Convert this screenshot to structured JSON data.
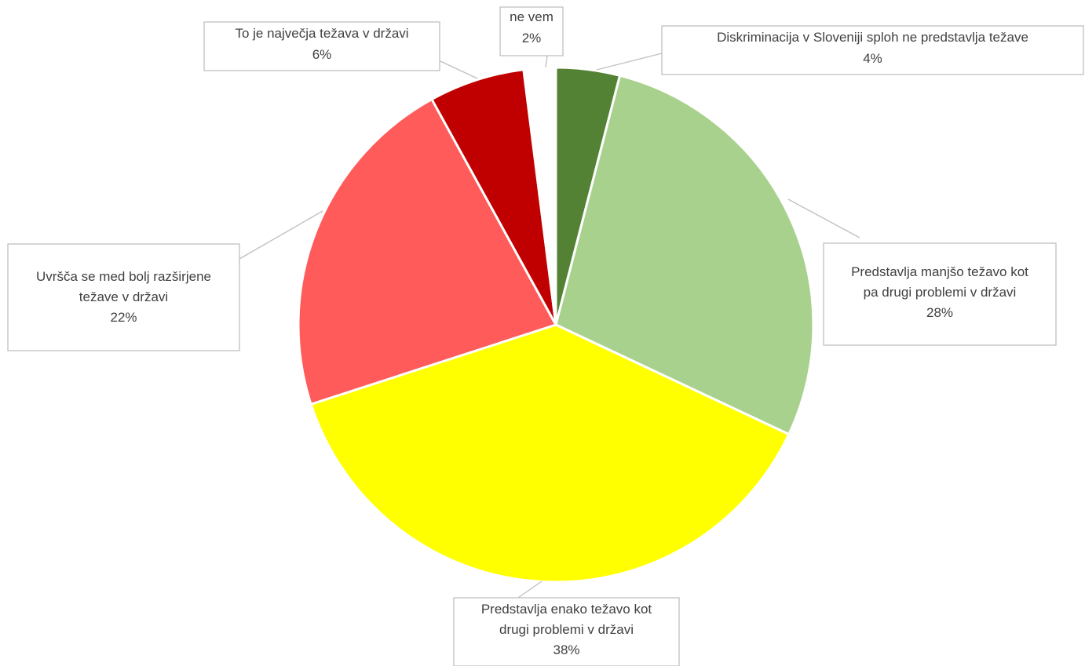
{
  "chart_data": {
    "type": "pie",
    "title": "",
    "slices": [
      {
        "label_lines": [
          "Diskriminacija v Sloveniji sploh ne predstavlja težave"
        ],
        "value": 4,
        "value_label": "4%",
        "color": "#548235"
      },
      {
        "label_lines": [
          "Predstavlja manjšo težavo kot",
          "pa drugi problemi v državi"
        ],
        "value": 28,
        "value_label": "28%",
        "color": "#a9d18e"
      },
      {
        "label_lines": [
          "Predstavlja enako težavo kot",
          "drugi problemi v državi"
        ],
        "value": 38,
        "value_label": "38%",
        "color": "#ffff00"
      },
      {
        "label_lines": [
          "Uvršča se med bolj razširjene",
          "težave v državi"
        ],
        "value": 22,
        "value_label": "22%",
        "color": "#ff5b5b"
      },
      {
        "label_lines": [
          "To je največja težava v državi"
        ],
        "value": 6,
        "value_label": "6%",
        "color": "#c00000"
      },
      {
        "label_lines": [
          "ne vem"
        ],
        "value": 2,
        "value_label": "2%",
        "color": "#ffffff"
      }
    ],
    "legend": "none",
    "data_labels": "callouts"
  }
}
